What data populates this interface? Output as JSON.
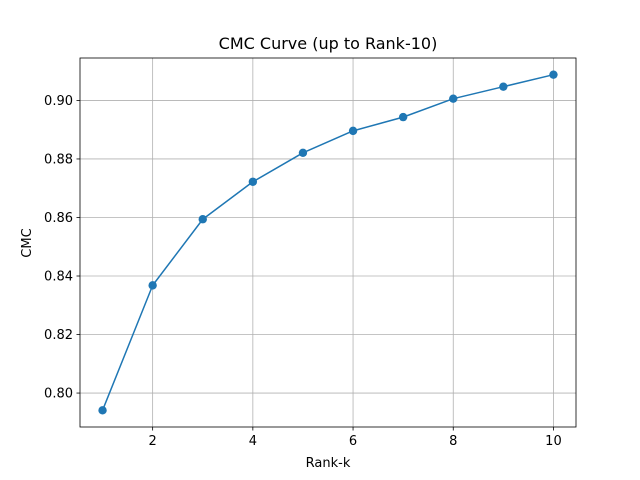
{
  "chart_data": {
    "type": "line",
    "title": "CMC Curve (up to Rank-10)",
    "xlabel": "Rank-k",
    "ylabel": "CMC",
    "x": [
      1,
      2,
      3,
      4,
      5,
      6,
      7,
      8,
      9,
      10
    ],
    "series": [
      {
        "values": [
          0.7941,
          0.8368,
          0.8594,
          0.8722,
          0.8821,
          0.8896,
          0.8943,
          0.9006,
          0.9047,
          0.9088
        ],
        "color": "#1f77b4",
        "marker": "circle"
      }
    ],
    "xlim": [
      0.55,
      10.45
    ],
    "ylim": [
      0.7884,
      0.9145
    ],
    "xticks": [
      2,
      4,
      6,
      8,
      10
    ],
    "yticks": [
      0.8,
      0.82,
      0.84,
      0.86,
      0.88,
      0.9
    ],
    "ytick_labels": [
      "0.80",
      "0.82",
      "0.84",
      "0.86",
      "0.88",
      "0.90"
    ],
    "grid": true,
    "legend": "none"
  }
}
